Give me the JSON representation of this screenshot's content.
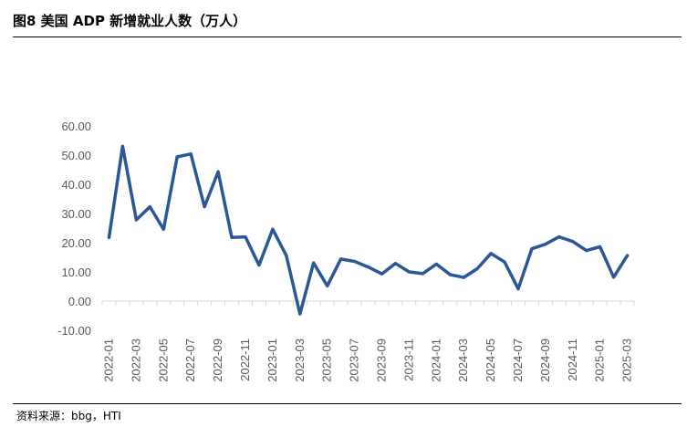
{
  "figure": {
    "title": "图8   美国 ADP 新增就业人数（万人）",
    "source": "资料来源：bbg，HTI"
  },
  "colors": {
    "line": "#2B5796",
    "axis": "#D9D9D9",
    "tick_text": "#595959"
  },
  "chart_data": {
    "type": "line",
    "title": "",
    "xlabel": "",
    "ylabel": "",
    "ylim": [
      -10,
      60
    ],
    "yticks": [
      "-10.00",
      "0.00",
      "10.00",
      "20.00",
      "30.00",
      "40.00",
      "50.00",
      "60.00"
    ],
    "ytick_values": [
      -10,
      0,
      10,
      20,
      30,
      40,
      50,
      60
    ],
    "grid": false,
    "legend": "none",
    "categories": [
      "2022-01",
      "2022-02",
      "2022-03",
      "2022-04",
      "2022-05",
      "2022-06",
      "2022-07",
      "2022-08",
      "2022-09",
      "2022-10",
      "2022-11",
      "2022-12",
      "2023-01",
      "2023-02",
      "2023-03",
      "2023-04",
      "2023-05",
      "2023-06",
      "2023-07",
      "2023-08",
      "2023-09",
      "2023-10",
      "2023-11",
      "2023-12",
      "2024-01",
      "2024-02",
      "2024-03",
      "2024-04",
      "2024-05",
      "2024-06",
      "2024-07",
      "2024-08",
      "2024-09",
      "2024-10",
      "2024-11",
      "2024-12",
      "2025-01",
      "2025-02",
      "2025-03"
    ],
    "xtick_labels": [
      "2022-01",
      "2022-03",
      "2022-05",
      "2022-07",
      "2022-09",
      "2022-11",
      "2023-01",
      "2023-03",
      "2023-05",
      "2023-07",
      "2023-09",
      "2023-11",
      "2024-01",
      "2024-03",
      "2024-05",
      "2024-07",
      "2024-09",
      "2024-11",
      "2025-01",
      "2025-03"
    ],
    "series": [
      {
        "values": [
          21.8,
          53.0,
          27.8,
          32.3,
          24.6,
          49.4,
          50.4,
          32.3,
          44.3,
          21.8,
          22.0,
          12.3,
          24.6,
          15.6,
          -4.4,
          13.1,
          5.2,
          14.4,
          13.6,
          11.7,
          9.3,
          12.9,
          10.0,
          9.4,
          12.7,
          9.1,
          8.1,
          11.1,
          16.3,
          13.4,
          4.2,
          17.9,
          19.5,
          22.0,
          20.4,
          17.3,
          18.6,
          8.2,
          15.6
        ]
      }
    ]
  }
}
